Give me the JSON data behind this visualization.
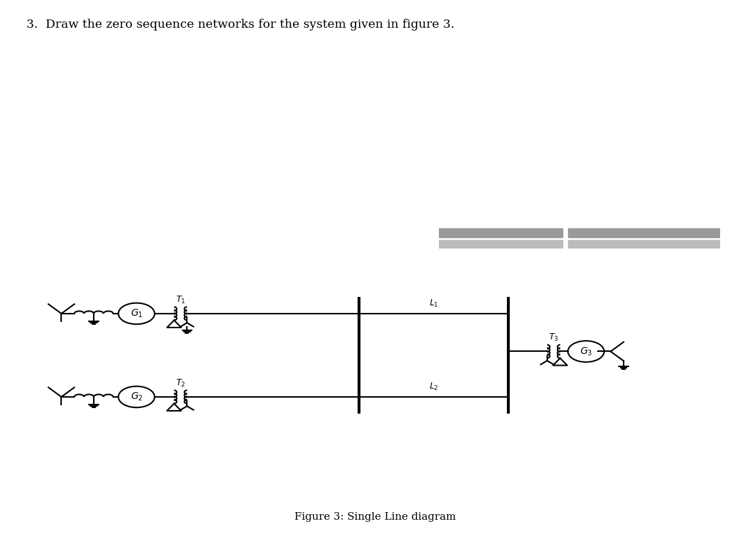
{
  "title": "3.  Draw the zero sequence networks for the system given in figure 3.",
  "caption": "Figure 3: Single Line diagram",
  "bg_color": "#ffffff",
  "line_color": "#000000",
  "fig_width": 10.8,
  "fig_height": 7.71,
  "dpi": 100
}
